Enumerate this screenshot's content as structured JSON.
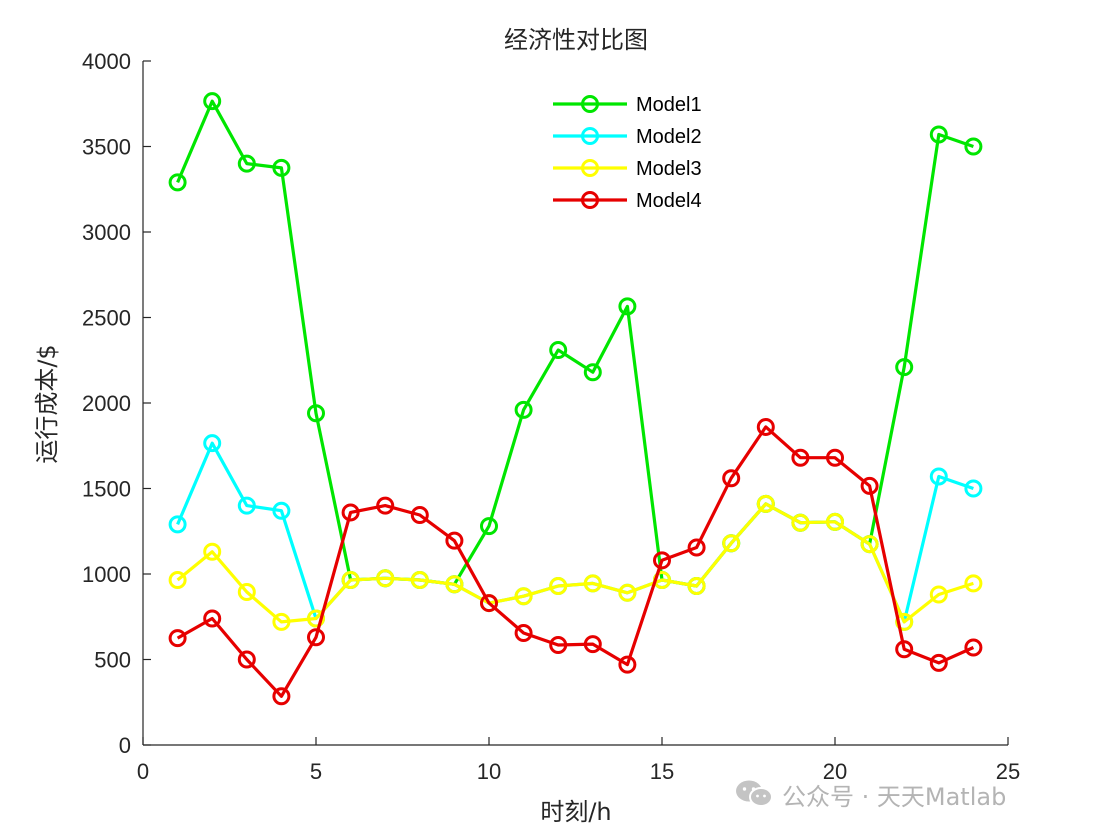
{
  "watermark": {
    "text": "公众号 · 天天Matlab",
    "icon": "wechat-icon",
    "color": "#b4b4b4"
  },
  "chart_data": {
    "type": "line",
    "title": "经济性对比图",
    "xlabel": "时刻/h",
    "ylabel": "运行成本/$",
    "xlim": [
      0,
      25
    ],
    "ylim": [
      0,
      4000
    ],
    "xticks": [
      0,
      5,
      10,
      15,
      20,
      25
    ],
    "yticks": [
      0,
      500,
      1000,
      1500,
      2000,
      2500,
      3000,
      3500,
      4000
    ],
    "grid": false,
    "legend_position": "top-center",
    "marker": "circle",
    "x": [
      1,
      2,
      3,
      4,
      5,
      6,
      7,
      8,
      9,
      10,
      11,
      12,
      13,
      14,
      15,
      16,
      17,
      18,
      19,
      20,
      21,
      22,
      23,
      24
    ],
    "series": [
      {
        "name": "Model1",
        "color": "#00e600",
        "values": [
          3290,
          3765,
          3400,
          3375,
          1940,
          965,
          975,
          965,
          940,
          1280,
          1960,
          2310,
          2180,
          2565,
          965,
          930,
          1180,
          1410,
          1300,
          1305,
          1175,
          2210,
          3570,
          3500
        ]
      },
      {
        "name": "Model2",
        "color": "#00ffff",
        "values": [
          1290,
          1765,
          1400,
          1370,
          740,
          965,
          975,
          965,
          940,
          830,
          870,
          930,
          945,
          890,
          965,
          930,
          1180,
          1410,
          1300,
          1305,
          1175,
          720,
          1570,
          1500
        ]
      },
      {
        "name": "Model3",
        "color": "#ffff00",
        "values": [
          965,
          1130,
          895,
          720,
          740,
          965,
          975,
          965,
          940,
          830,
          870,
          930,
          945,
          890,
          965,
          930,
          1180,
          1410,
          1300,
          1305,
          1175,
          720,
          880,
          945
        ]
      },
      {
        "name": "Model4",
        "color": "#e60000",
        "values": [
          625,
          740,
          500,
          285,
          630,
          1360,
          1400,
          1345,
          1195,
          830,
          655,
          585,
          590,
          470,
          1080,
          1155,
          1560,
          1860,
          1680,
          1680,
          1515,
          560,
          480,
          570
        ]
      }
    ]
  }
}
